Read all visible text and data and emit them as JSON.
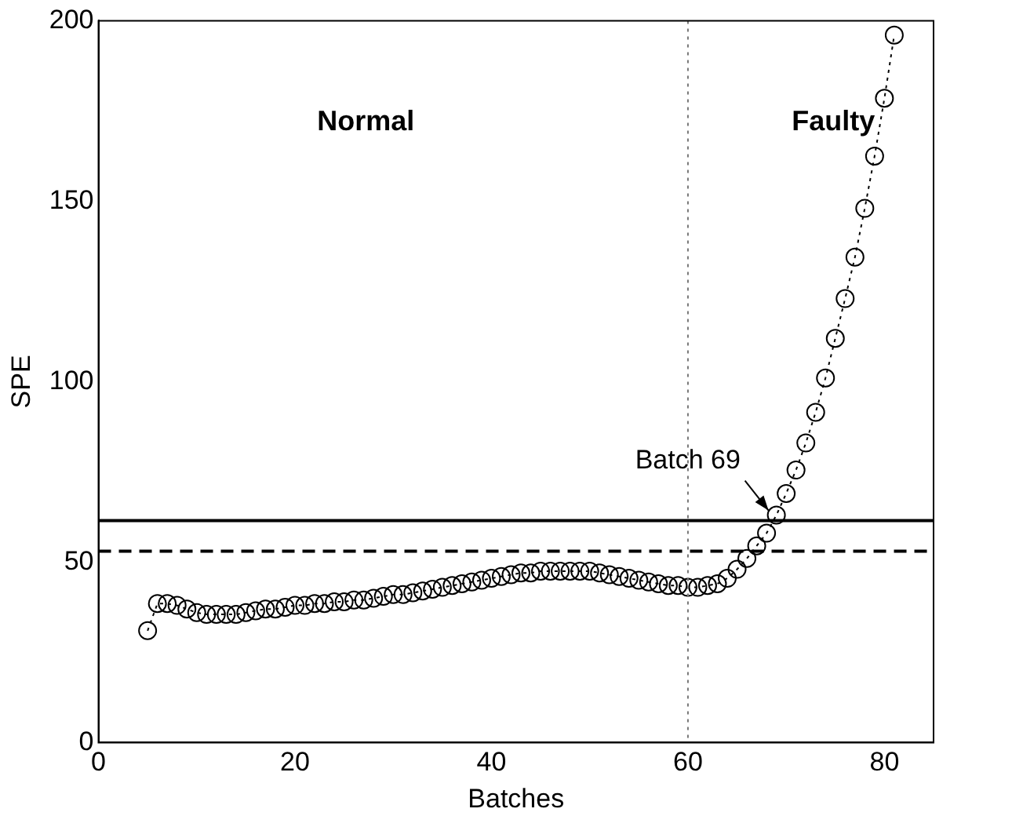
{
  "chart_data": {
    "type": "line",
    "xlabel": "Batches",
    "ylabel": "SPE",
    "x": [
      5,
      6,
      7,
      8,
      9,
      10,
      11,
      12,
      13,
      14,
      15,
      16,
      17,
      18,
      19,
      20,
      21,
      22,
      23,
      24,
      25,
      26,
      27,
      28,
      29,
      30,
      31,
      32,
      33,
      34,
      35,
      36,
      37,
      38,
      39,
      40,
      41,
      42,
      43,
      44,
      45,
      46,
      47,
      48,
      49,
      50,
      51,
      52,
      53,
      54,
      55,
      56,
      57,
      58,
      59,
      60,
      61,
      62,
      63,
      64,
      65,
      66,
      67,
      68,
      69,
      70,
      71,
      72,
      73,
      74,
      75,
      76,
      77,
      78,
      79,
      80,
      81
    ],
    "series": [
      {
        "color": "#000000",
        "values": [
          31,
          38.5,
          38.5,
          38,
          37,
          36,
          35.5,
          35.5,
          35.5,
          35.5,
          36,
          36.5,
          37,
          37,
          37.5,
          38,
          38,
          38.5,
          38.5,
          39,
          39,
          39.5,
          39.5,
          40,
          40.5,
          41,
          41,
          41.5,
          42,
          42.5,
          43,
          43.5,
          44,
          44.5,
          45,
          45.5,
          46,
          46.5,
          47,
          47,
          47.5,
          47.5,
          47.5,
          47.5,
          47.5,
          47.5,
          47,
          46.5,
          46,
          45.5,
          45,
          44.5,
          44,
          43.5,
          43.5,
          43,
          43,
          43.5,
          44,
          45.5,
          48,
          51,
          54.5,
          58,
          63,
          69,
          75.5,
          83,
          91.5,
          101,
          112,
          123,
          134.5,
          148,
          162.5,
          178.5,
          196
        ]
      }
    ],
    "marker": "circle",
    "line_style": "dotted",
    "xlim": [
      0,
      85
    ],
    "xticks": [
      0,
      20,
      40,
      60,
      80
    ],
    "ylim": [
      0,
      200
    ],
    "yticks": [
      0,
      50,
      100,
      150,
      200
    ],
    "grid": false,
    "legend": false,
    "ref_lines": [
      {
        "axis": "y",
        "value": 61.5,
        "color": "#000000",
        "line_style": "solid"
      },
      {
        "axis": "y",
        "value": 53,
        "color": "#000000",
        "line_style": "dashed"
      },
      {
        "axis": "x",
        "value": 60,
        "color": "#777777",
        "line_style": "dotted"
      }
    ],
    "annotations": [
      "Normal",
      "Faulty",
      {
        "text": "Batch 69",
        "x": 69,
        "y": 63
      }
    ]
  }
}
